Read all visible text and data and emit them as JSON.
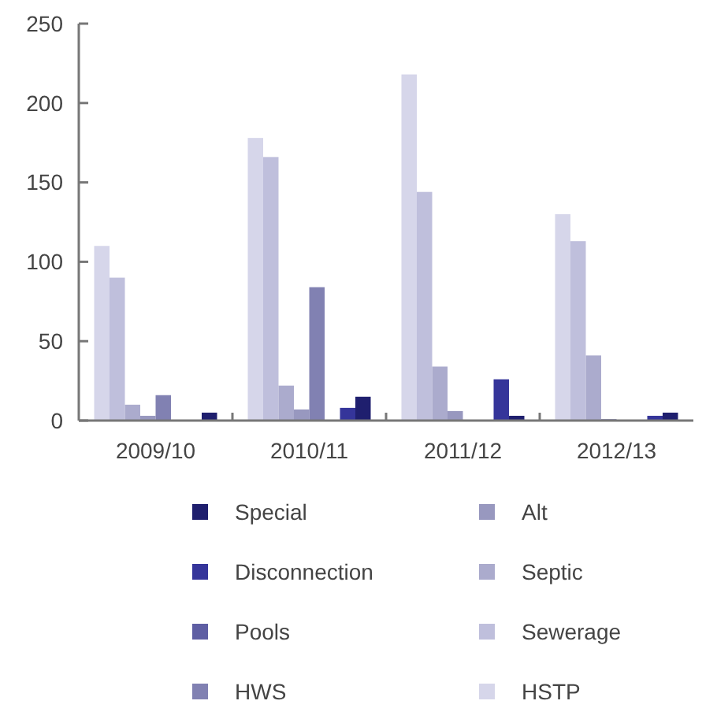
{
  "chart_data": {
    "type": "bar",
    "categories": [
      "2009/10",
      "2010/11",
      "2011/12",
      "2012/13"
    ],
    "series": [
      {
        "name": "HSTP",
        "color": "#d6d6ea",
        "values": [
          110,
          178,
          218,
          130
        ]
      },
      {
        "name": "Sewerage",
        "color": "#bfbfdc",
        "values": [
          90,
          166,
          144,
          113
        ]
      },
      {
        "name": "Septic",
        "color": "#ababcd",
        "values": [
          10,
          22,
          34,
          41
        ]
      },
      {
        "name": "Alt",
        "color": "#9898bf",
        "values": [
          3,
          7,
          6,
          1
        ]
      },
      {
        "name": "HWS",
        "color": "#8181b2",
        "values": [
          16,
          84,
          0,
          0
        ]
      },
      {
        "name": "Pools",
        "color": "#5e5ea3",
        "values": [
          0,
          0,
          0,
          0
        ]
      },
      {
        "name": "Disconnection",
        "color": "#35359a",
        "values": [
          0,
          8,
          26,
          3
        ]
      },
      {
        "name": "Special",
        "color": "#1f1f6e",
        "values": [
          5,
          15,
          3,
          5
        ]
      }
    ],
    "ylim": [
      0,
      250
    ],
    "yticks": [
      0,
      50,
      100,
      150,
      200,
      250
    ],
    "grid": false,
    "legend": "bottom"
  }
}
